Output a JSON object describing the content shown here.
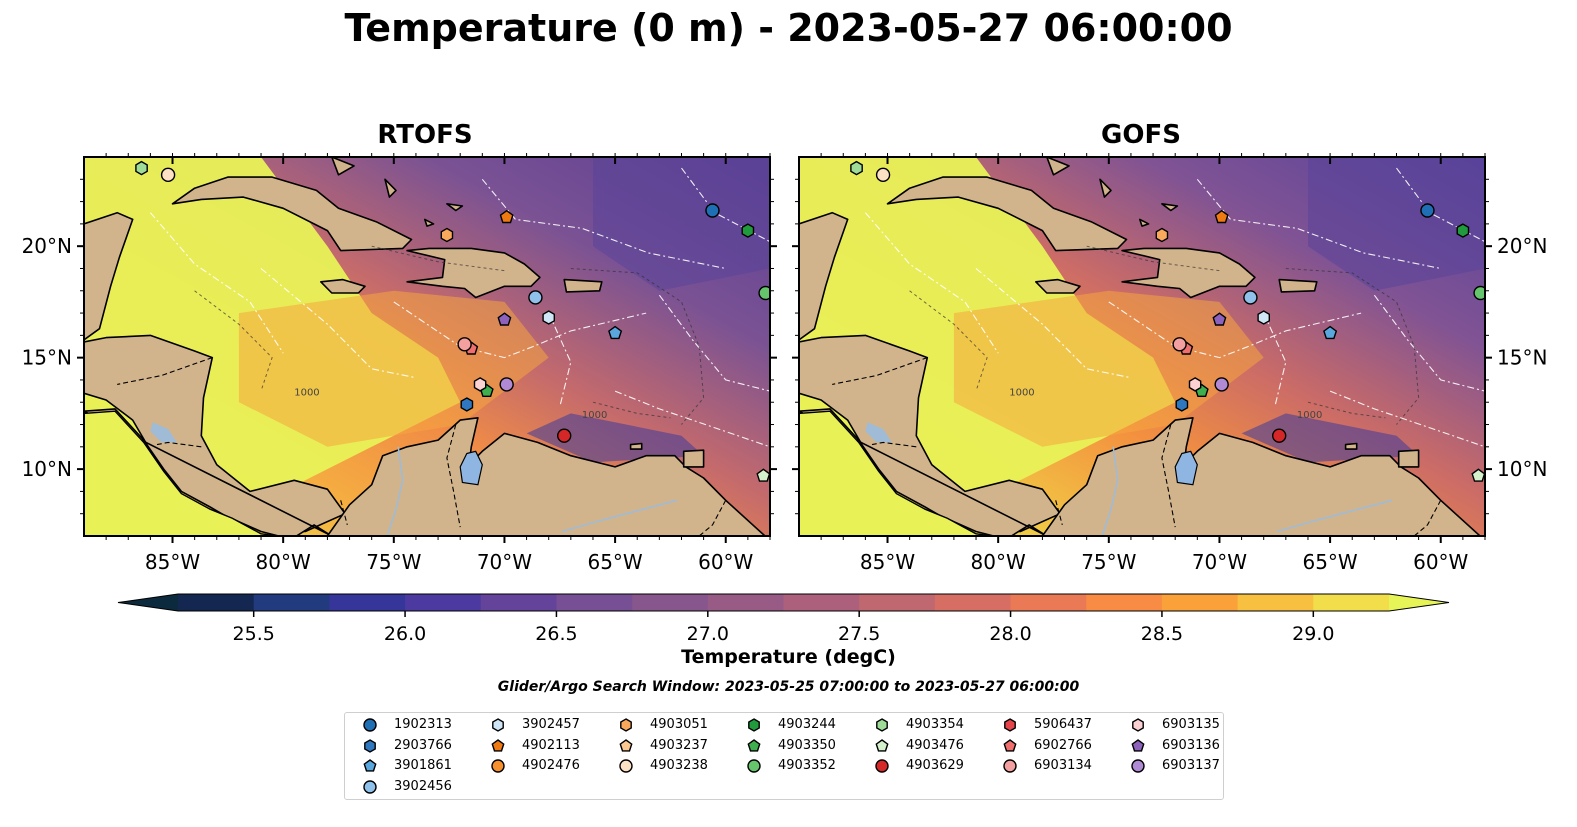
{
  "title": "Temperature (0 m) - 2023-05-27 06:00:00",
  "chart_data": {
    "type": "heatmap",
    "panels": [
      {
        "title": "RTOFS"
      },
      {
        "title": "GOFS"
      }
    ],
    "map": {
      "lon_range": [
        -89,
        -58
      ],
      "lat_range": [
        7,
        24
      ],
      "lon_ticks": [
        "85°W",
        "80°W",
        "75°W",
        "70°W",
        "65°W",
        "60°W"
      ],
      "lat_ticks": [
        "20°N",
        "15°N",
        "10°N"
      ],
      "bathymetry_contour_label": "1000"
    },
    "colorbar": {
      "label": "Temperature (degC)",
      "range": [
        25.25,
        29.25
      ],
      "ticks": [
        "25.5",
        "26.0",
        "26.5",
        "27.0",
        "27.5",
        "28.0",
        "28.5",
        "29.0"
      ],
      "extend": "both",
      "colors": [
        "#0b2a3d",
        "#142750",
        "#223a7e",
        "#35359a",
        "#4c3aa0",
        "#63449a",
        "#774f94",
        "#87568d",
        "#985b85",
        "#ac607c",
        "#c06870",
        "#d76e63",
        "#ea7a55",
        "#f88c44",
        "#fba13a",
        "#f8c040",
        "#f1de4a",
        "#e6f457"
      ]
    },
    "search_window": "Glider/Argo Search Window: 2023-05-25 07:00:00 to 2023-05-27 06:00:00",
    "floats": [
      {
        "id": "1902313",
        "marker": "circle",
        "color": "#1f6fb4",
        "lon": -60.6,
        "lat": 21.6
      },
      {
        "id": "2903766",
        "marker": "hexagon",
        "color": "#2f78bf",
        "lon": -71.7,
        "lat": 12.9
      },
      {
        "id": "3901861",
        "marker": "pentagon",
        "color": "#5aa7dd",
        "lon": -65.0,
        "lat": 16.1
      },
      {
        "id": "3902456",
        "marker": "circle",
        "color": "#8fc1ea",
        "lon": -68.6,
        "lat": 17.7
      },
      {
        "id": "3902457",
        "marker": "hexagon",
        "color": "#cfe6f7",
        "lon": -68.0,
        "lat": 16.8
      },
      {
        "id": "4902113",
        "marker": "pentagon",
        "color": "#f07a12",
        "lon": -69.9,
        "lat": 21.3
      },
      {
        "id": "4902476",
        "marker": "circle",
        "color": "#f6902e",
        "lon": null,
        "lat": null
      },
      {
        "id": "4903051",
        "marker": "hexagon",
        "color": "#f8a95c",
        "lon": -72.6,
        "lat": 20.5
      },
      {
        "id": "4903237",
        "marker": "pentagon",
        "color": "#fbc891",
        "lon": null,
        "lat": null
      },
      {
        "id": "4903238",
        "marker": "circle",
        "color": "#fde1c4",
        "lon": -85.2,
        "lat": 23.2
      },
      {
        "id": "4903244",
        "marker": "hexagon",
        "color": "#219a3d",
        "lon": -59.0,
        "lat": 20.7
      },
      {
        "id": "4903350",
        "marker": "pentagon",
        "color": "#3fae4f",
        "lon": -70.8,
        "lat": 13.5
      },
      {
        "id": "4903352",
        "marker": "circle",
        "color": "#66c56c",
        "lon": -58.2,
        "lat": 17.9
      },
      {
        "id": "4903354",
        "marker": "hexagon",
        "color": "#9edc97",
        "lon": -86.4,
        "lat": 23.5
      },
      {
        "id": "4903476",
        "marker": "pentagon",
        "color": "#d5f2cc",
        "lon": -58.3,
        "lat": 9.7
      },
      {
        "id": "4903629",
        "marker": "circle",
        "color": "#d62728",
        "lon": -67.3,
        "lat": 11.5
      },
      {
        "id": "5906437",
        "marker": "hexagon",
        "color": "#e4444a",
        "lon": null,
        "lat": null
      },
      {
        "id": "6902766",
        "marker": "pentagon",
        "color": "#ef6f6f",
        "lon": -71.5,
        "lat": 15.4
      },
      {
        "id": "6903134",
        "marker": "circle",
        "color": "#f4a0a0",
        "lon": -71.8,
        "lat": 15.6
      },
      {
        "id": "6903135",
        "marker": "hexagon",
        "color": "#fbd1d1",
        "lon": -71.1,
        "lat": 13.8
      },
      {
        "id": "6903136",
        "marker": "pentagon",
        "color": "#8c62bd",
        "lon": -70.0,
        "lat": 16.7
      },
      {
        "id": "6903137",
        "marker": "circle",
        "color": "#b08ad5",
        "lon": -69.9,
        "lat": 13.8
      }
    ]
  }
}
